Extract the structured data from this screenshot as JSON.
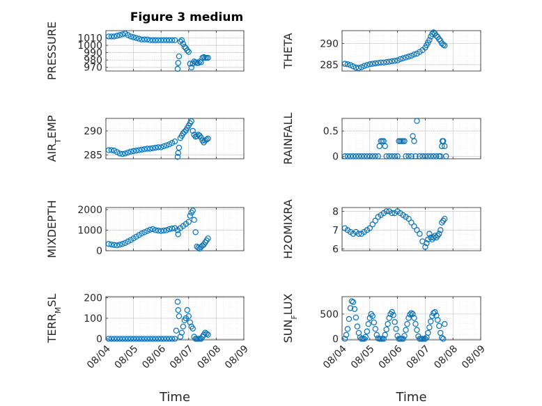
{
  "figure": {
    "title": "Figure 3 medium"
  },
  "colors": {
    "marker": "#0072BD",
    "axis": "#262626",
    "grid": "#c8c8c8",
    "minor_grid": "#e2e2e2"
  },
  "chart_data": [
    {
      "type": "scatter",
      "name": "pressure",
      "ylabel": "PRESSURE",
      "ylabel_sub": "",
      "title": "Figure 3 medium",
      "xlabel": "",
      "xlim": [
        0,
        5
      ],
      "ylim": [
        965,
        1020
      ],
      "yticks": [
        970,
        980,
        990,
        1000,
        1010
      ],
      "xticks": [],
      "grid": true,
      "x": [
        0.1,
        0.2,
        0.3,
        0.4,
        0.5,
        0.6,
        0.7,
        0.8,
        0.9,
        1.0,
        1.1,
        1.2,
        1.3,
        1.4,
        1.5,
        1.6,
        1.7,
        1.8,
        1.9,
        2.0,
        2.1,
        2.2,
        2.3,
        2.4,
        2.5,
        2.6,
        2.62,
        2.65,
        2.7,
        2.75,
        2.8,
        2.85,
        2.9,
        2.95,
        3.0,
        3.05,
        3.1,
        3.15,
        3.2,
        3.25,
        3.3,
        3.35,
        3.4,
        3.45,
        3.5,
        3.55,
        3.6,
        3.65,
        3.7
      ],
      "y": [
        1012,
        1012,
        1012,
        1013,
        1014,
        1015,
        1016,
        1014,
        1012,
        1011,
        1010,
        1009,
        1008,
        1008,
        1008,
        1007,
        1007,
        1007,
        1007,
        1007,
        1007,
        1007,
        1007,
        1007,
        1007,
        968,
        976,
        985,
        1005,
        1007,
        1002,
        998,
        996,
        993,
        991,
        975,
        970,
        975,
        978,
        977,
        976,
        976,
        978,
        977,
        983,
        984,
        983,
        983,
        983
      ],
      "marker": "circle"
    },
    {
      "type": "scatter",
      "name": "theta",
      "ylabel": "THETA",
      "ylabel_sub": "",
      "xlim": [
        0,
        5
      ],
      "ylim": [
        283.5,
        293
      ],
      "yticks": [
        285,
        290
      ],
      "xticks": [],
      "grid": true,
      "x": [
        0.1,
        0.2,
        0.3,
        0.4,
        0.5,
        0.6,
        0.7,
        0.8,
        0.9,
        1.0,
        1.1,
        1.2,
        1.3,
        1.4,
        1.5,
        1.6,
        1.7,
        1.8,
        1.9,
        2.0,
        2.1,
        2.2,
        2.3,
        2.4,
        2.5,
        2.6,
        2.7,
        2.8,
        2.9,
        3.0,
        3.05,
        3.1,
        3.15,
        3.2,
        3.25,
        3.3,
        3.35,
        3.4,
        3.45,
        3.5,
        3.55,
        3.6,
        3.65,
        3.7
      ],
      "y": [
        285.2,
        285.1,
        284.9,
        284.6,
        284.3,
        284.2,
        284.4,
        284.7,
        284.9,
        285.1,
        285.2,
        285.3,
        285.4,
        285.5,
        285.5,
        285.6,
        285.7,
        285.8,
        285.9,
        286.0,
        286.3,
        286.5,
        286.7,
        286.9,
        287.1,
        287.4,
        287.6,
        288.0,
        288.4,
        289.0,
        289.6,
        290.2,
        290.8,
        291.6,
        292.2,
        292.6,
        292.3,
        291.8,
        291.5,
        291.0,
        290.6,
        290.0,
        289.7,
        289.5
      ],
      "marker": "circle"
    },
    {
      "type": "scatter",
      "name": "air_temp",
      "ylabel": "AIR",
      "ylabel_sub": "T",
      "ylabel_rest": "EMP",
      "xlim": [
        0,
        5
      ],
      "ylim": [
        284.2,
        292.6
      ],
      "yticks": [
        285,
        290
      ],
      "xticks": [],
      "grid": true,
      "x": [
        0.1,
        0.2,
        0.3,
        0.4,
        0.5,
        0.6,
        0.7,
        0.8,
        0.9,
        1.0,
        1.1,
        1.2,
        1.3,
        1.4,
        1.5,
        1.6,
        1.7,
        1.8,
        1.9,
        2.0,
        2.1,
        2.2,
        2.3,
        2.4,
        2.5,
        2.6,
        2.62,
        2.65,
        2.7,
        2.75,
        2.8,
        2.85,
        2.9,
        2.95,
        3.0,
        3.05,
        3.1,
        3.15,
        3.2,
        3.25,
        3.3,
        3.35,
        3.4,
        3.45,
        3.5,
        3.55,
        3.6,
        3.65,
        3.7
      ],
      "y": [
        286.0,
        286.0,
        285.9,
        285.6,
        285.3,
        285.2,
        285.3,
        285.5,
        285.7,
        285.8,
        285.9,
        286.0,
        286.1,
        286.2,
        286.3,
        286.3,
        286.4,
        286.5,
        286.6,
        286.6,
        286.8,
        287.0,
        287.2,
        287.5,
        287.8,
        284.6,
        285.4,
        286.5,
        288.5,
        289.0,
        289.5,
        289.8,
        290.1,
        290.6,
        291.1,
        291.6,
        292.0,
        290.0,
        289.2,
        288.8,
        288.9,
        289.2,
        289.0,
        288.6,
        288.0,
        287.6,
        288.0,
        288.2,
        288.4
      ],
      "marker": "circle"
    },
    {
      "type": "scatter",
      "name": "rainfall",
      "ylabel": "RAINFALL",
      "ylabel_sub": "",
      "xlim": [
        0,
        5
      ],
      "ylim": [
        -0.05,
        0.75
      ],
      "yticks": [
        0,
        0.5
      ],
      "xticks": [],
      "grid": true,
      "x": [
        0.1,
        0.2,
        0.3,
        0.4,
        0.5,
        0.6,
        0.7,
        0.8,
        0.9,
        1.0,
        1.1,
        1.2,
        1.3,
        1.35,
        1.4,
        1.45,
        1.5,
        1.55,
        1.6,
        1.7,
        1.8,
        1.9,
        2.0,
        2.05,
        2.1,
        2.15,
        2.2,
        2.25,
        2.3,
        2.4,
        2.5,
        2.55,
        2.6,
        2.65,
        2.7,
        2.8,
        2.9,
        3.0,
        3.1,
        3.2,
        3.3,
        3.4,
        3.5,
        3.55,
        3.6,
        3.62,
        3.65,
        3.7,
        3.75
      ],
      "y": [
        0,
        0,
        0,
        0,
        0,
        0,
        0,
        0,
        0,
        0,
        0,
        0,
        0,
        0.2,
        0.3,
        0.3,
        0.3,
        0.2,
        0,
        0,
        0,
        0,
        0,
        0.3,
        0.3,
        0.3,
        0.3,
        0.3,
        0,
        0,
        0,
        0.4,
        0.3,
        0,
        0.7,
        0,
        0,
        0,
        0,
        0,
        0,
        0,
        0,
        0,
        0.2,
        0.3,
        0.3,
        0.2,
        0
      ],
      "marker": "circle"
    },
    {
      "type": "scatter",
      "name": "mixdepth",
      "ylabel": "MIXDEPTH",
      "ylabel_sub": "",
      "xlim": [
        0,
        5
      ],
      "ylim": [
        0,
        2100
      ],
      "yticks": [
        0,
        1000,
        2000
      ],
      "xticks": [],
      "grid": true,
      "x": [
        0.1,
        0.2,
        0.3,
        0.4,
        0.5,
        0.6,
        0.7,
        0.8,
        0.9,
        1.0,
        1.1,
        1.2,
        1.3,
        1.4,
        1.5,
        1.6,
        1.7,
        1.8,
        1.9,
        2.0,
        2.1,
        2.2,
        2.3,
        2.4,
        2.5,
        2.6,
        2.62,
        2.7,
        2.8,
        2.9,
        3.0,
        3.05,
        3.1,
        3.15,
        3.2,
        3.25,
        3.3,
        3.35,
        3.4,
        3.45,
        3.5,
        3.55,
        3.6,
        3.65,
        3.7
      ],
      "y": [
        330,
        300,
        280,
        260,
        290,
        330,
        380,
        450,
        520,
        600,
        680,
        760,
        840,
        900,
        960,
        1020,
        1050,
        1000,
        980,
        960,
        980,
        1000,
        1050,
        1080,
        1100,
        1000,
        800,
        1100,
        1200,
        1300,
        1400,
        1700,
        1850,
        1950,
        1500,
        900,
        200,
        150,
        100,
        180,
        250,
        300,
        400,
        500,
        600
      ],
      "marker": "circle"
    },
    {
      "type": "scatter",
      "name": "h2omixra",
      "ylabel": "H2OMIXRA",
      "ylabel_sub": "",
      "xlim": [
        0,
        5
      ],
      "ylim": [
        5.9,
        8.2
      ],
      "yticks": [
        6,
        7,
        8
      ],
      "xticks": [],
      "grid": true,
      "x": [
        0.1,
        0.2,
        0.3,
        0.4,
        0.5,
        0.6,
        0.7,
        0.8,
        0.9,
        1.0,
        1.1,
        1.2,
        1.3,
        1.4,
        1.5,
        1.6,
        1.7,
        1.8,
        1.9,
        2.0,
        2.1,
        2.2,
        2.3,
        2.4,
        2.5,
        2.6,
        2.7,
        2.8,
        2.9,
        3.0,
        3.05,
        3.1,
        3.15,
        3.2,
        3.25,
        3.3,
        3.35,
        3.4,
        3.45,
        3.5,
        3.55,
        3.6,
        3.65,
        3.7
      ],
      "y": [
        7.1,
        7.0,
        6.9,
        6.8,
        6.9,
        6.8,
        6.8,
        6.9,
        7.0,
        7.1,
        7.3,
        7.5,
        7.7,
        7.8,
        7.9,
        8.0,
        8.0,
        7.9,
        7.9,
        8.0,
        7.9,
        7.8,
        7.7,
        7.6,
        7.4,
        7.2,
        7.0,
        6.8,
        6.4,
        6.1,
        6.3,
        6.5,
        6.8,
        6.6,
        6.5,
        6.6,
        6.7,
        6.6,
        6.7,
        6.8,
        7.0,
        7.4,
        7.5,
        7.6
      ],
      "marker": "circle"
    },
    {
      "type": "scatter",
      "name": "terr_msl",
      "ylabel": "TERR",
      "ylabel_sub": "M",
      "ylabel_rest": "SL",
      "xlim": [
        0,
        5
      ],
      "ylim": [
        -5,
        205
      ],
      "yticks": [
        0,
        100,
        200
      ],
      "grid": true,
      "xticks": [
        "08/04",
        "08/05",
        "08/06",
        "08/07",
        "08/08",
        "08/09"
      ],
      "xlabel": "Time",
      "x": [
        0.1,
        0.2,
        0.3,
        0.4,
        0.5,
        0.6,
        0.7,
        0.8,
        0.9,
        1.0,
        1.1,
        1.2,
        1.3,
        1.4,
        1.5,
        1.6,
        1.7,
        1.8,
        1.9,
        2.0,
        2.1,
        2.2,
        2.3,
        2.4,
        2.5,
        2.55,
        2.6,
        2.62,
        2.65,
        2.7,
        2.75,
        2.8,
        2.85,
        2.9,
        2.95,
        3.0,
        3.05,
        3.1,
        3.15,
        3.2,
        3.25,
        3.3,
        3.35,
        3.4,
        3.45,
        3.5,
        3.55,
        3.6,
        3.65,
        3.7
      ],
      "y": [
        0,
        0,
        0,
        0,
        0,
        0,
        0,
        0,
        0,
        0,
        0,
        0,
        0,
        0,
        0,
        0,
        0,
        0,
        0,
        0,
        0,
        0,
        0,
        0,
        0,
        40,
        180,
        140,
        110,
        10,
        30,
        60,
        90,
        100,
        140,
        110,
        80,
        60,
        50,
        10,
        0,
        0,
        0,
        0,
        0,
        10,
        20,
        30,
        25,
        20
      ],
      "marker": "circle"
    },
    {
      "type": "scatter",
      "name": "sun_flux",
      "ylabel": "SUN",
      "ylabel_sub": "F",
      "ylabel_rest": "LUX",
      "xlim": [
        0,
        5
      ],
      "ylim": [
        -20,
        850
      ],
      "yticks": [
        0,
        500
      ],
      "grid": true,
      "xticks": [
        "08/04",
        "08/05",
        "08/06",
        "08/07",
        "08/08",
        "08/09"
      ],
      "xlabel": "Time",
      "x": [
        0.1,
        0.15,
        0.2,
        0.25,
        0.3,
        0.35,
        0.4,
        0.45,
        0.5,
        0.55,
        0.6,
        0.65,
        0.7,
        0.75,
        0.8,
        0.85,
        0.9,
        0.95,
        1.0,
        1.05,
        1.1,
        1.15,
        1.2,
        1.25,
        1.3,
        1.35,
        1.4,
        1.45,
        1.5,
        1.55,
        1.6,
        1.65,
        1.7,
        1.75,
        1.8,
        1.85,
        1.9,
        1.95,
        2.0,
        2.05,
        2.1,
        2.15,
        2.2,
        2.25,
        2.3,
        2.35,
        2.4,
        2.45,
        2.5,
        2.55,
        2.6,
        2.65,
        2.7,
        2.75,
        2.8,
        2.85,
        2.9,
        2.95,
        3.0,
        3.05,
        3.1,
        3.15,
        3.2,
        3.25,
        3.3,
        3.35,
        3.4,
        3.45,
        3.5,
        3.55,
        3.6,
        3.65,
        3.7
      ],
      "y": [
        0,
        80,
        200,
        400,
        620,
        760,
        740,
        600,
        430,
        250,
        120,
        30,
        0,
        0,
        0,
        40,
        150,
        300,
        420,
        500,
        460,
        330,
        200,
        80,
        10,
        0,
        0,
        0,
        0,
        80,
        190,
        300,
        420,
        500,
        540,
        480,
        340,
        200,
        60,
        0,
        0,
        0,
        0,
        60,
        180,
        300,
        420,
        490,
        520,
        500,
        420,
        300,
        180,
        50,
        0,
        0,
        0,
        0,
        0,
        30,
        120,
        230,
        350,
        460,
        520,
        540,
        470,
        380,
        260,
        120,
        20,
        0,
        300
      ],
      "marker": "circle"
    }
  ]
}
